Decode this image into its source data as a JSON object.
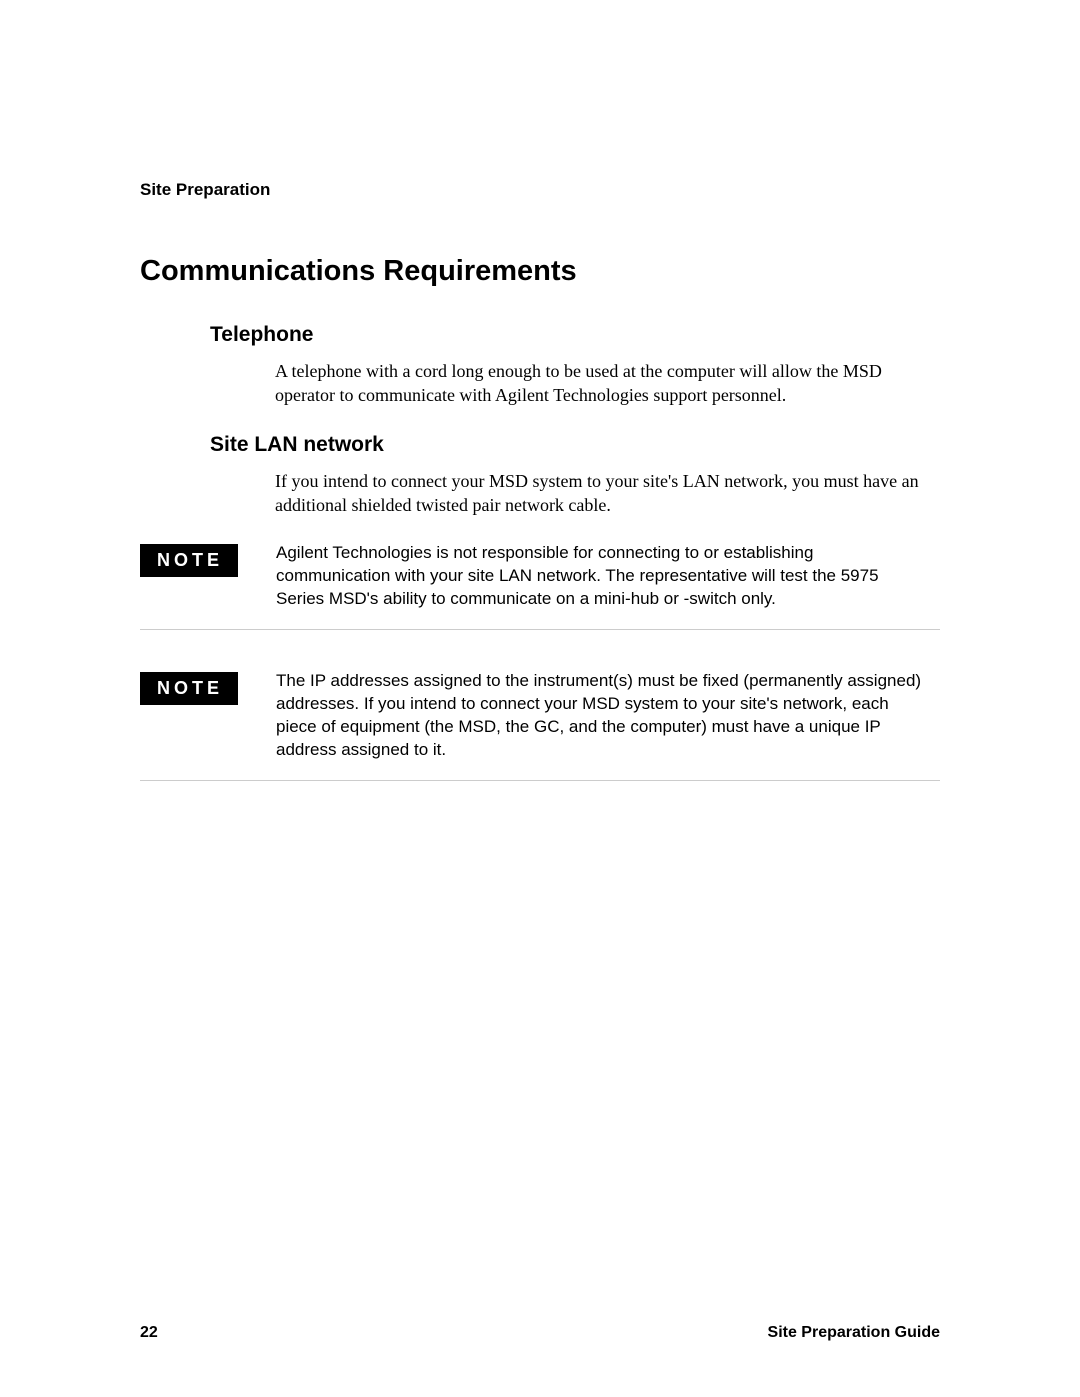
{
  "header": {
    "running_title": "Site Preparation"
  },
  "main_heading": "Communications Requirements",
  "sections": [
    {
      "heading": "Telephone",
      "body": "A telephone with a cord long enough to be used at the computer will allow the MSD operator to communicate with Agilent Technologies support personnel."
    },
    {
      "heading": "Site LAN network",
      "body": "If you intend to connect your MSD system to your site's LAN network, you must have an additional shielded twisted pair network cable."
    }
  ],
  "notes": [
    {
      "label": "NOTE",
      "text": "Agilent Technologies is not responsible for connecting to or establishing communication with your site LAN network. The representative will test the 5975 Series MSD's ability to communicate on a mini-hub or -switch only."
    },
    {
      "label": "NOTE",
      "text": "The IP addresses assigned to the instrument(s) must be fixed (permanently assigned) addresses. If you intend to connect your MSD system to your site's network, each piece of equipment (the MSD, the GC, and the computer) must have a unique IP address assigned to it."
    }
  ],
  "footer": {
    "page_number": "22",
    "guide_title": "Site Preparation Guide"
  },
  "colors": {
    "text": "#000000",
    "background": "#ffffff",
    "note_badge_bg": "#000000",
    "note_badge_fg": "#ffffff",
    "divider": "#cccccc"
  }
}
